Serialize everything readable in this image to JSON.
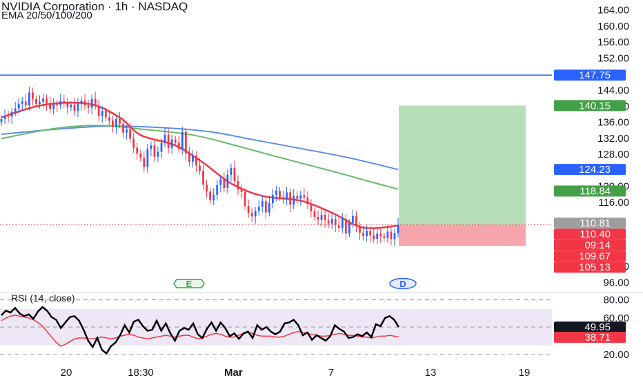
{
  "header": {
    "title": "NVIDIA Corporation · 1h · NASDAQ",
    "indicator": "EMA 20/50/100/200"
  },
  "rsi_panel": {
    "label": "RSI (14, close)"
  },
  "markers": {
    "earnings": "E",
    "dividend": "D"
  },
  "colors": {
    "up_candle": "#2962ff",
    "down_candle": "#f23645",
    "ema20": "#f23645",
    "ema50": "#66bb6a",
    "ema100": "#5b8def",
    "horizontal_line": "#2962ff",
    "profit_zone": "#b7e0b8",
    "loss_zone": "#f7a5ac",
    "rsi_line": "#000000",
    "rsi_ma": "#f23645",
    "rsi_band": "#ede7f6"
  },
  "price_badges": [
    {
      "label": "147.75",
      "value": 147.75,
      "bg": "#2962ff",
      "fg": "#ffffff"
    },
    {
      "label": "140.15",
      "value": 140.15,
      "bg": "#43a047",
      "fg": "#ffffff"
    },
    {
      "label": "124.23",
      "value": 124.23,
      "bg": "#2962ff",
      "fg": "#ffffff"
    },
    {
      "label": "118.84",
      "value": 118.84,
      "bg": "#43a047",
      "fg": "#ffffff"
    },
    {
      "label": "110.81",
      "value": 110.81,
      "bg": "#9e9e9e",
      "fg": "#ffffff"
    },
    {
      "label": "110.40",
      "value": 110.4,
      "bg": "#f23645",
      "fg": "#ffffff"
    },
    {
      "label": "09:14",
      "value": 108.9,
      "bg": "#f23645",
      "fg": "#ffffff"
    },
    {
      "label": "109.67",
      "value": 107.1,
      "bg": "#f23645",
      "fg": "#ffffff"
    },
    {
      "label": "105.13",
      "value": 105.13,
      "bg": "#f23645",
      "fg": "#ffffff"
    }
  ],
  "rsi_badges": [
    {
      "label": "49.95",
      "value": 49.95,
      "bg": "#131722",
      "fg": "#ffffff"
    },
    {
      "label": "38.71",
      "value": 38.71,
      "bg": "#f23645",
      "fg": "#ffffff"
    }
  ],
  "chart_data": {
    "type": "candlestick",
    "title": "NVIDIA Corporation · 1h · NASDAQ",
    "price_axis": {
      "ylim": [
        93.5,
        166.5
      ],
      "ticks": [
        "164.00",
        "160.00",
        "156.00",
        "152.00",
        "144.00",
        "140.00",
        "136.00",
        "132.00",
        "128.00",
        "120.00",
        "116.00",
        "100.00",
        "96.00"
      ],
      "tick_values": [
        164,
        160,
        156,
        152,
        144,
        140,
        136,
        132,
        128,
        120,
        116,
        100,
        96
      ]
    },
    "x_axis": {
      "ticks": [
        {
          "label": "20",
          "pos": 0.12
        },
        {
          "label": "18:30",
          "pos": 0.255
        },
        {
          "label": "Mar",
          "pos": 0.423
        },
        {
          "label": "7",
          "pos": 0.6
        },
        {
          "label": "13",
          "pos": 0.78
        },
        {
          "label": "19",
          "pos": 0.95
        }
      ]
    },
    "candles_close": [
      136.8,
      137.6,
      137.4,
      138.6,
      139.4,
      140.6,
      141.2,
      140.2,
      143.4,
      141.8,
      140.6,
      141.1,
      141.9,
      140.7,
      139.3,
      140.5,
      140.2,
      141.3,
      140.9,
      139.7,
      140.4,
      138.8,
      140.7,
      141.4,
      140.2,
      139.6,
      141.8,
      140.1,
      137.5,
      138.8,
      137.2,
      136.4,
      134.9,
      136.8,
      135.6,
      133.4,
      134.2,
      131.9,
      129.6,
      128.2,
      127.1,
      124.8,
      129.3,
      130.2,
      127.4,
      128.6,
      130.8,
      132.9,
      129.6,
      131.7,
      130.9,
      129.4,
      133.6,
      128.2,
      126.1,
      127.6,
      125.2,
      123.9,
      120.4,
      118.7,
      116.5,
      117.9,
      120.3,
      121.8,
      119.6,
      122.9,
      124.6,
      121.3,
      119.2,
      118.6,
      115.1,
      113.4,
      112.5,
      113.8,
      114.9,
      116.3,
      113.5,
      115.8,
      117.9,
      118.9,
      117.3,
      116.8,
      118.5,
      115.4,
      117.6,
      116.9,
      117.8,
      117.2,
      115.6,
      113.8,
      112.4,
      111.6,
      112.9,
      111.5,
      110.7,
      111.9,
      110.3,
      109.6,
      111.8,
      108.2,
      110.9,
      112.6,
      110.1,
      108.4,
      107.6,
      108.9,
      107.8,
      106.9,
      108.2,
      107.5,
      107.1,
      108.7,
      106.8,
      108.3,
      110.4
    ],
    "ema20": [
      [
        0,
        137.2
      ],
      [
        12,
        140.3
      ],
      [
        25,
        140.6
      ],
      [
        34,
        137.2
      ],
      [
        40,
        132.8
      ],
      [
        50,
        130.2
      ],
      [
        58,
        125.9
      ],
      [
        66,
        120.7
      ],
      [
        75,
        117.6
      ],
      [
        86,
        116.4
      ],
      [
        95,
        113.4
      ],
      [
        104,
        109.7
      ],
      [
        114,
        110.2
      ]
    ],
    "ema50": [
      [
        0,
        131.9
      ],
      [
        15,
        134.4
      ],
      [
        28,
        135.2
      ],
      [
        40,
        134.3
      ],
      [
        55,
        132.8
      ],
      [
        66,
        130.5
      ],
      [
        80,
        127.2
      ],
      [
        95,
        123.8
      ],
      [
        105,
        121.4
      ],
      [
        114,
        119.3
      ]
    ],
    "ema100": [
      [
        0,
        133.0
      ],
      [
        15,
        134.2
      ],
      [
        30,
        135.0
      ],
      [
        45,
        134.7
      ],
      [
        60,
        133.6
      ],
      [
        72,
        131.7
      ],
      [
        85,
        129.6
      ],
      [
        100,
        127.1
      ],
      [
        114,
        124.2
      ]
    ],
    "horizontal_line": 147.75,
    "position": {
      "entry": 110.4,
      "target": 140.15,
      "stop": 105.13
    },
    "rsi": {
      "ylim": [
        10,
        88
      ],
      "ticks": [
        "80.00",
        "60.00",
        "20.00"
      ],
      "tick_values": [
        80,
        60,
        20
      ],
      "band": [
        30,
        70
      ],
      "values": [
        63,
        68,
        66,
        71,
        65,
        62,
        64,
        59,
        67,
        72,
        68,
        61,
        58,
        49,
        55,
        61,
        62,
        57,
        47,
        35,
        28,
        38,
        25,
        21,
        29,
        33,
        41,
        52,
        44,
        56,
        58,
        51,
        46,
        47,
        57,
        46,
        54,
        43,
        35,
        46,
        49,
        47,
        54,
        42,
        38,
        48,
        55,
        46,
        55,
        49,
        40,
        43,
        37,
        43,
        45,
        38,
        52,
        47,
        50,
        45,
        42,
        45,
        54,
        55,
        58,
        52,
        41,
        44,
        36,
        41,
        38,
        35,
        40,
        52,
        48,
        45,
        38,
        39,
        42,
        40,
        44,
        39,
        53,
        51,
        60,
        62,
        58,
        50
      ],
      "ma": [
        57,
        60,
        62,
        63,
        62,
        61,
        60,
        58,
        55,
        51,
        45,
        39,
        33,
        29,
        31,
        34,
        37,
        38,
        38,
        37,
        37,
        38,
        39,
        38,
        37,
        38,
        40,
        41,
        42,
        41,
        39,
        38,
        37,
        38,
        39,
        40,
        41,
        40,
        39,
        40,
        41,
        41,
        39,
        37,
        38,
        40,
        42,
        43,
        42,
        40,
        39,
        39,
        41,
        43,
        44,
        43,
        41,
        40,
        40,
        40,
        39,
        39,
        40,
        42,
        44,
        45,
        44,
        43,
        42,
        41,
        40,
        40,
        41,
        42,
        43,
        42,
        41,
        41,
        40,
        39,
        39,
        38,
        39,
        40,
        40,
        41,
        40,
        39
      ]
    }
  }
}
